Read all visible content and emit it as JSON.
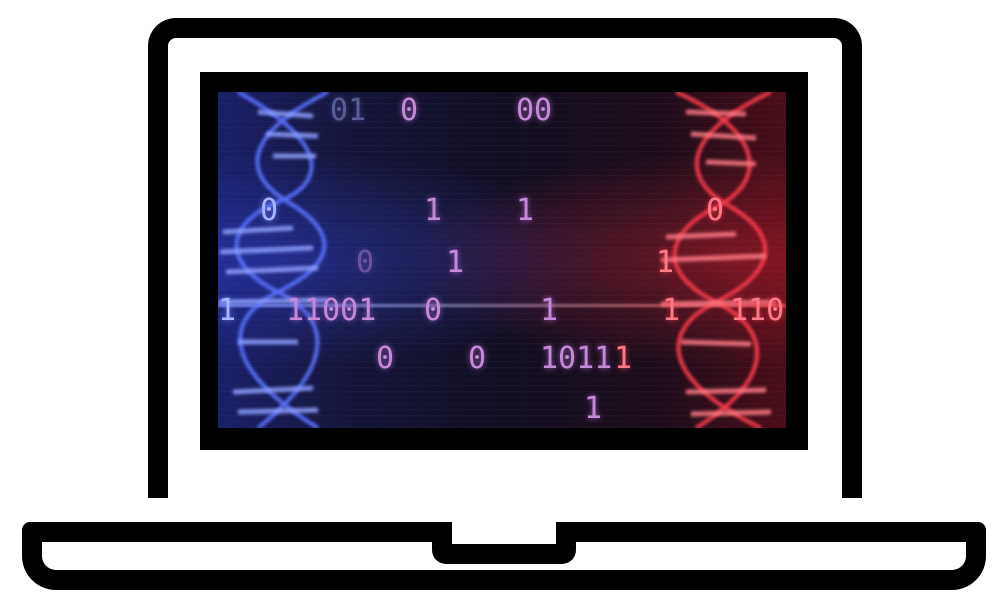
{
  "screen": {
    "digits": [
      {
        "text": "01",
        "tone": "blue"
      },
      {
        "text": "0",
        "tone": "violet"
      },
      {
        "text": "00",
        "tone": "violet"
      },
      {
        "text": "0",
        "tone": "blue"
      },
      {
        "text": "1",
        "tone": "violet"
      },
      {
        "text": "1",
        "tone": "violet"
      },
      {
        "text": "0",
        "tone": "red"
      },
      {
        "text": "0",
        "tone": "violet"
      },
      {
        "text": "1",
        "tone": "violet"
      },
      {
        "text": "1",
        "tone": "red"
      },
      {
        "text": "1",
        "tone": "blue"
      },
      {
        "text": "11001",
        "tone": "violet"
      },
      {
        "text": "0",
        "tone": "violet"
      },
      {
        "text": "1",
        "tone": "violet"
      },
      {
        "text": "1",
        "tone": "red"
      },
      {
        "text": "110",
        "tone": "red"
      },
      {
        "text": "0",
        "tone": "violet"
      },
      {
        "text": "0",
        "tone": "violet"
      },
      {
        "text": "1011",
        "tone": "violet"
      },
      {
        "text": "1",
        "tone": "red"
      },
      {
        "text": "1",
        "tone": "violet"
      }
    ]
  },
  "icons": {
    "laptop": "laptop-icon",
    "dna_left": "dna-helix-icon",
    "dna_right": "dna-helix-icon"
  },
  "colors": {
    "frame": "#000000",
    "helix_left": "#4a63ff",
    "helix_right": "#ff3448",
    "digits": "#c48ad8"
  }
}
